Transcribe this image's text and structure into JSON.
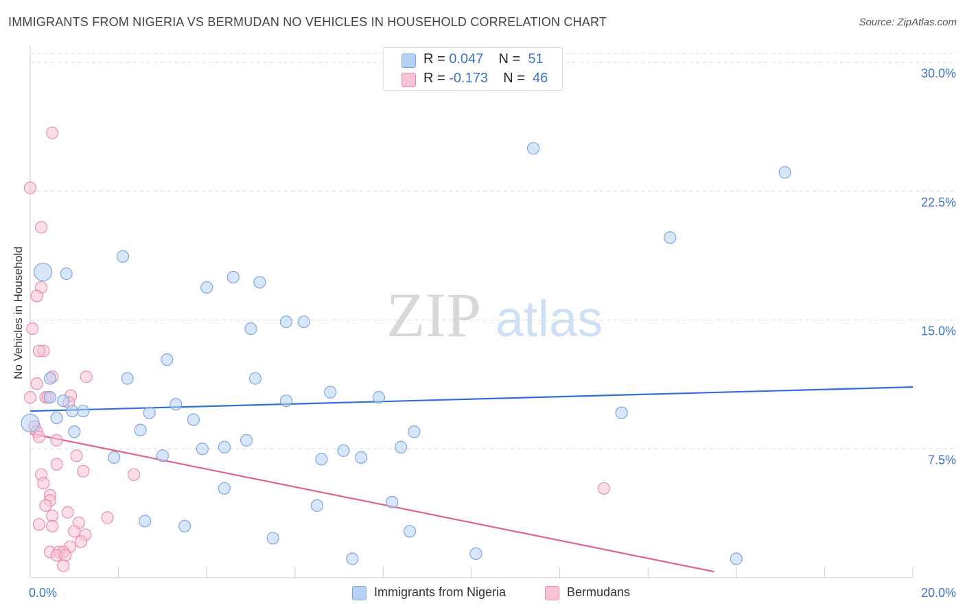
{
  "title": "IMMIGRANTS FROM NIGERIA VS BERMUDAN NO VEHICLES IN HOUSEHOLD CORRELATION CHART",
  "source": "Source: ZipAtlas.com",
  "watermark": {
    "zip": "ZIP",
    "atlas": "atlas"
  },
  "legend_top": [
    {
      "r_label": "R =",
      "r_value": "0.047",
      "n_label": "N =",
      "n_value": "51"
    },
    {
      "r_label": "R =",
      "r_value": "-0.173",
      "n_label": "N =",
      "n_value": "46"
    }
  ],
  "legend_bottom": [
    {
      "label": "Immigrants from Nigeria"
    },
    {
      "label": "Bermudans"
    }
  ],
  "colors": {
    "blue_fill": "#b7d1f4",
    "blue_stroke": "#7ea6df",
    "blue_line": "#2f6fd1",
    "pink_fill": "#f8c4d3",
    "pink_stroke": "#e88eaa",
    "pink_line": "#e0628e",
    "tick_label": "#3a73c8",
    "grid": "#d8d8d8"
  },
  "chart_data": {
    "type": "scatter",
    "title": "IMMIGRANTS FROM NIGERIA VS BERMUDAN NO VEHICLES IN HOUSEHOLD CORRELATION CHART",
    "xlabel": "",
    "ylabel": "No Vehicles in Household",
    "xlim": [
      0,
      20
    ],
    "ylim": [
      0,
      31
    ],
    "x_tick_labels": [
      "0.0%",
      "20.0%"
    ],
    "y_ticks": [
      7.5,
      15.0,
      22.5,
      30.0
    ],
    "y_tick_labels": [
      "7.5%",
      "15.0%",
      "22.5%",
      "30.0%"
    ],
    "grid": "horizontal dashed",
    "series": [
      {
        "name": "Immigrants from Nigeria",
        "trend": {
          "x": [
            0,
            20
          ],
          "y": [
            9.7,
            11.1
          ]
        },
        "points": [
          [
            0.29,
            17.8,
            "large"
          ],
          [
            0.0,
            9.0,
            "large"
          ],
          [
            0.45,
            11.6
          ],
          [
            0.45,
            10.5
          ],
          [
            0.82,
            17.7
          ],
          [
            2.1,
            18.7
          ],
          [
            0.75,
            10.3
          ],
          [
            0.6,
            9.3
          ],
          [
            0.95,
            9.7
          ],
          [
            1.2,
            9.7
          ],
          [
            1.0,
            8.5
          ],
          [
            2.2,
            11.6
          ],
          [
            2.7,
            9.6
          ],
          [
            3.1,
            12.7
          ],
          [
            3.3,
            10.1
          ],
          [
            2.5,
            8.6
          ],
          [
            1.9,
            7.0
          ],
          [
            3.0,
            7.1
          ],
          [
            3.7,
            9.2
          ],
          [
            3.9,
            7.5
          ],
          [
            4.4,
            7.6
          ],
          [
            4.0,
            16.9
          ],
          [
            4.6,
            17.5
          ],
          [
            5.2,
            17.2
          ],
          [
            4.9,
            8.0
          ],
          [
            5.0,
            14.5
          ],
          [
            5.1,
            11.6
          ],
          [
            5.8,
            14.9
          ],
          [
            6.2,
            14.9
          ],
          [
            5.8,
            10.3
          ],
          [
            6.8,
            10.8
          ],
          [
            7.1,
            7.4
          ],
          [
            7.5,
            7.0
          ],
          [
            7.9,
            10.5
          ],
          [
            8.4,
            7.6
          ],
          [
            8.7,
            8.5
          ],
          [
            6.6,
            6.9
          ],
          [
            4.4,
            5.2
          ],
          [
            6.5,
            4.2
          ],
          [
            8.2,
            4.4
          ],
          [
            2.6,
            3.3
          ],
          [
            3.5,
            3.0
          ],
          [
            5.5,
            2.3
          ],
          [
            8.6,
            2.7
          ],
          [
            7.3,
            1.1
          ],
          [
            10.1,
            1.4
          ],
          [
            11.4,
            25.0
          ],
          [
            13.4,
            9.6
          ],
          [
            14.5,
            19.8
          ],
          [
            17.1,
            23.6
          ],
          [
            16.0,
            1.1
          ]
        ]
      },
      {
        "name": "Bermudans",
        "trend": {
          "x": [
            0,
            15.5
          ],
          "y": [
            8.4,
            0.35
          ],
          "dash_x": [
            15.0,
            15.6
          ]
        },
        "points": [
          [
            0.5,
            25.9
          ],
          [
            0.0,
            22.7
          ],
          [
            0.25,
            20.4
          ],
          [
            0.25,
            16.9
          ],
          [
            0.15,
            16.4
          ],
          [
            0.05,
            14.5
          ],
          [
            0.3,
            13.2
          ],
          [
            0.2,
            13.2
          ],
          [
            0.15,
            11.3
          ],
          [
            0.5,
            11.7
          ],
          [
            1.27,
            11.7
          ],
          [
            0.0,
            10.5
          ],
          [
            0.35,
            10.5
          ],
          [
            0.4,
            10.5
          ],
          [
            0.92,
            10.6
          ],
          [
            0.87,
            10.2
          ],
          [
            0.1,
            8.8
          ],
          [
            0.15,
            8.5
          ],
          [
            0.2,
            8.2
          ],
          [
            0.6,
            8.0
          ],
          [
            1.05,
            7.1
          ],
          [
            0.6,
            6.6
          ],
          [
            0.25,
            6.0
          ],
          [
            0.3,
            5.5
          ],
          [
            1.2,
            6.2
          ],
          [
            2.35,
            6.0
          ],
          [
            0.45,
            4.8
          ],
          [
            0.45,
            4.5
          ],
          [
            0.35,
            4.2
          ],
          [
            0.5,
            3.6
          ],
          [
            0.85,
            3.8
          ],
          [
            1.1,
            3.2
          ],
          [
            0.5,
            3.0
          ],
          [
            0.2,
            3.1
          ],
          [
            1.0,
            2.7
          ],
          [
            1.25,
            2.5
          ],
          [
            1.15,
            2.1
          ],
          [
            1.75,
            3.5
          ],
          [
            0.9,
            1.8
          ],
          [
            0.45,
            1.5
          ],
          [
            0.65,
            1.5
          ],
          [
            0.75,
            1.5
          ],
          [
            0.6,
            1.3
          ],
          [
            0.8,
            1.3
          ],
          [
            0.75,
            0.7
          ],
          [
            13.0,
            5.2
          ]
        ]
      }
    ]
  }
}
